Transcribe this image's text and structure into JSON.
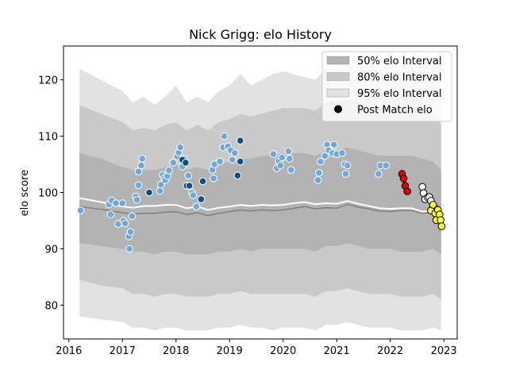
{
  "chart_data": {
    "type": "scatter",
    "title": "Nick Grigg: elo History",
    "xlabel": "",
    "ylabel": "elo score",
    "xlim": [
      2015.9,
      2023.25
    ],
    "ylim": [
      74,
      126
    ],
    "xticks": [
      2016,
      2017,
      2018,
      2019,
      2020,
      2021,
      2022,
      2023
    ],
    "yticks": [
      80,
      90,
      100,
      110,
      120
    ],
    "legend_position": "top-right",
    "legend": [
      {
        "label": "50% elo Interval",
        "kind": "band",
        "color": "#b3b3b3"
      },
      {
        "label": "80% elo Interval",
        "kind": "band",
        "color": "#c9c9c9"
      },
      {
        "label": "95% elo Interval",
        "kind": "band",
        "color": "#e2e2e2"
      },
      {
        "label": "Post Match elo",
        "kind": "marker",
        "color": "#000000"
      }
    ],
    "colors": {
      "band50": "#b3b3b3",
      "band80": "#c9c9c9",
      "band95": "#e2e2e2",
      "mean_line": "#ffffff",
      "median_line": "#808080",
      "light_blue": "#6fa8dc",
      "dark_blue": "#0b4f84",
      "red": "#e00000",
      "white": "#ffffff",
      "yellow": "#ffff33"
    },
    "bands": {
      "x": [
        2016.2,
        2016.6,
        2017.0,
        2017.2,
        2017.4,
        2017.6,
        2017.8,
        2018.0,
        2018.2,
        2018.4,
        2018.6,
        2018.8,
        2019.0,
        2019.2,
        2019.4,
        2019.6,
        2019.8,
        2020.0,
        2020.2,
        2020.4,
        2020.6,
        2020.8,
        2021.0,
        2021.2,
        2021.4,
        2021.6,
        2021.8,
        2022.0,
        2022.2,
        2022.4,
        2022.6,
        2022.8,
        2022.95
      ],
      "p95_upper": [
        122,
        120,
        118,
        116,
        117,
        115.5,
        117,
        119,
        116,
        117,
        116,
        118,
        119,
        121,
        119,
        120,
        121,
        121.5,
        121,
        120.5,
        120,
        122,
        122,
        123,
        122,
        122,
        121,
        121,
        121,
        121,
        120.5,
        121,
        119
      ],
      "p80_upper": [
        115.5,
        114,
        112.5,
        111,
        111.5,
        111,
        112,
        112.5,
        111,
        112,
        111,
        112.5,
        113,
        114,
        113.5,
        114,
        114.5,
        115,
        115,
        115,
        114.5,
        116,
        116,
        116.5,
        116,
        115.5,
        115,
        115,
        115,
        115,
        114.5,
        114,
        112
      ],
      "p50_upper": [
        107,
        106,
        104.5,
        104,
        104,
        104,
        104.5,
        105,
        104,
        104.5,
        104,
        105,
        105.5,
        106,
        106,
        106.5,
        106.5,
        107,
        107,
        107,
        106.5,
        107.5,
        107.5,
        108,
        107.5,
        107,
        106.5,
        106.5,
        106.5,
        106.5,
        106,
        105.5,
        104
      ],
      "p50_lower": [
        91,
        90.5,
        90,
        89.5,
        89.5,
        89,
        89.5,
        89.5,
        89,
        89,
        89,
        89.5,
        89.5,
        90,
        89.5,
        90,
        90,
        90,
        90,
        90,
        89.5,
        90.5,
        90.5,
        91,
        90.5,
        90,
        90,
        90,
        89.5,
        89.5,
        89.5,
        90,
        89
      ],
      "p80_lower": [
        84.5,
        83.5,
        83,
        82,
        82,
        81.5,
        82,
        82,
        81.5,
        81.5,
        81.5,
        82,
        82,
        82.5,
        82,
        82,
        82,
        82,
        82,
        82,
        81.5,
        82.5,
        82.5,
        83,
        82.5,
        82,
        82,
        82,
        81.5,
        81.5,
        81.5,
        82,
        81
      ],
      "p95_lower": [
        78,
        77.5,
        77,
        76,
        76,
        75.5,
        76,
        76,
        75.5,
        75.5,
        75.5,
        76,
        76,
        76.5,
        76,
        76,
        75.5,
        76,
        76,
        76,
        75.5,
        76.5,
        76.5,
        77,
        76.5,
        76,
        76,
        76,
        75.5,
        75.5,
        75.5,
        76,
        75.5
      ],
      "mean": [
        99,
        98.3,
        97.5,
        97.3,
        97.6,
        97.6,
        97.8,
        97.8,
        97.2,
        97.5,
        96.9,
        97.3,
        97.5,
        97.8,
        97.6,
        97.8,
        97.7,
        97.8,
        98.1,
        98.3,
        97.9,
        98.1,
        98.0,
        98.5,
        98.0,
        97.6,
        97.2,
        97.1,
        97.2,
        97.2,
        96.6,
        96.8,
        96.5
      ],
      "median": [
        97.5,
        97.0,
        96.4,
        96.2,
        96.3,
        96.3,
        96.5,
        96.6,
        96.1,
        96.4,
        95.9,
        96.3,
        96.6,
        96.9,
        96.7,
        96.9,
        96.8,
        96.9,
        97.2,
        97.5,
        97.1,
        97.3,
        97.2,
        97.9,
        97.4,
        97.1,
        96.7,
        96.6,
        96.8,
        96.8,
        96.3,
        96.5,
        96.3
      ]
    },
    "series": [
      {
        "color_key": "light_blue",
        "points": [
          [
            2016.22,
            96.8
          ],
          [
            2016.75,
            97.9
          ],
          [
            2016.8,
            98.6
          ],
          [
            2016.78,
            96.1
          ],
          [
            2016.92,
            94.4
          ],
          [
            2016.88,
            98.1
          ],
          [
            2017.0,
            98.1
          ],
          [
            2017.02,
            95.0
          ],
          [
            2017.05,
            94.5
          ],
          [
            2017.12,
            92.2
          ],
          [
            2017.15,
            93.0
          ],
          [
            2017.13,
            90.0
          ],
          [
            2017.18,
            95.8
          ],
          [
            2017.25,
            99.3
          ],
          [
            2017.27,
            98.7
          ],
          [
            2017.3,
            101.3
          ],
          [
            2017.3,
            103.7
          ],
          [
            2017.37,
            106.0
          ],
          [
            2017.35,
            104.8
          ],
          [
            2017.7,
            100.3
          ],
          [
            2017.72,
            101.4
          ],
          [
            2017.75,
            103.1
          ],
          [
            2017.78,
            102.6
          ],
          [
            2017.8,
            102.2
          ],
          [
            2017.84,
            102.9
          ],
          [
            2017.87,
            103.9
          ],
          [
            2017.95,
            105.3
          ],
          [
            2018.02,
            106.4
          ],
          [
            2018.05,
            107.1
          ],
          [
            2018.08,
            108.0
          ],
          [
            2018.12,
            104.6
          ],
          [
            2018.15,
            106.0
          ],
          [
            2018.23,
            103.0
          ],
          [
            2018.3,
            100.0
          ],
          [
            2018.32,
            99.5
          ],
          [
            2018.38,
            97.5
          ],
          [
            2018.68,
            104.0
          ],
          [
            2018.7,
            102.5
          ],
          [
            2018.72,
            105.0
          ],
          [
            2018.82,
            105.5
          ],
          [
            2018.88,
            108.0
          ],
          [
            2018.9,
            110.0
          ],
          [
            2018.97,
            108.2
          ],
          [
            2019.02,
            107.5
          ],
          [
            2019.05,
            105.8
          ],
          [
            2019.1,
            107.0
          ],
          [
            2019.82,
            106.8
          ],
          [
            2019.88,
            104.3
          ],
          [
            2019.92,
            105.5
          ],
          [
            2019.95,
            104.8
          ],
          [
            2019.98,
            106.2
          ],
          [
            2020.1,
            107.3
          ],
          [
            2020.12,
            106.0
          ],
          [
            2020.15,
            104.0
          ],
          [
            2020.65,
            102.2
          ],
          [
            2020.67,
            103.5
          ],
          [
            2020.7,
            105.5
          ],
          [
            2020.78,
            106.5
          ],
          [
            2020.82,
            108.5
          ],
          [
            2020.85,
            107.5
          ],
          [
            2020.92,
            107.0
          ],
          [
            2020.95,
            108.5
          ],
          [
            2021.0,
            106.8
          ],
          [
            2021.1,
            107.0
          ],
          [
            2021.15,
            105.0
          ],
          [
            2021.17,
            103.3
          ],
          [
            2021.2,
            104.8
          ],
          [
            2021.78,
            103.3
          ],
          [
            2021.82,
            104.8
          ],
          [
            2021.92,
            104.8
          ]
        ]
      },
      {
        "color_key": "dark_blue",
        "points": [
          [
            2017.5,
            100.0
          ],
          [
            2018.12,
            105.8
          ],
          [
            2018.2,
            101.2
          ],
          [
            2018.25,
            101.2
          ],
          [
            2018.47,
            98.8
          ],
          [
            2018.5,
            102.0
          ],
          [
            2018.18,
            105.3
          ],
          [
            2019.15,
            103.0
          ],
          [
            2019.2,
            109.2
          ],
          [
            2019.2,
            105.5
          ]
        ]
      },
      {
        "color_key": "red",
        "points": [
          [
            2022.22,
            103.3
          ],
          [
            2022.25,
            102.5
          ],
          [
            2022.28,
            101.2
          ],
          [
            2022.32,
            100.2
          ]
        ]
      },
      {
        "color_key": "white",
        "points": [
          [
            2022.6,
            101.0
          ],
          [
            2022.62,
            99.9
          ],
          [
            2022.65,
            98.8
          ],
          [
            2022.7,
            99.1
          ],
          [
            2022.73,
            99.2
          ],
          [
            2022.76,
            98.5
          ],
          [
            2022.8,
            97.6
          ],
          [
            2022.84,
            97.2
          ]
        ]
      },
      {
        "color_key": "yellow",
        "points": [
          [
            2022.76,
            96.8
          ],
          [
            2022.8,
            97.8
          ],
          [
            2022.84,
            96.3
          ],
          [
            2022.86,
            95.1
          ],
          [
            2022.89,
            96.9
          ],
          [
            2022.92,
            96.1
          ],
          [
            2022.94,
            95.1
          ],
          [
            2022.96,
            94.0
          ]
        ]
      }
    ]
  }
}
